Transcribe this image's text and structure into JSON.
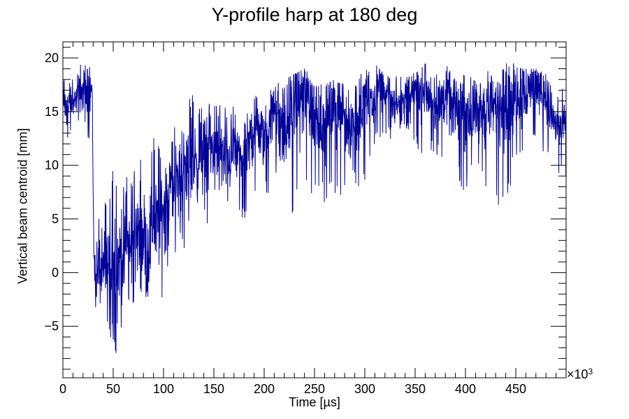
{
  "chart_data": {
    "type": "line",
    "title": "Y-profile harp at 180 deg",
    "xlabel": "Time [µs]",
    "ylabel": "Vertical beam centroid [mm]",
    "x_multiplier_base": "×10",
    "x_multiplier_exp": "3",
    "xlim": [
      0,
      500
    ],
    "ylim": [
      -9.8,
      21.5
    ],
    "x_ticks": [
      0,
      50,
      100,
      150,
      200,
      250,
      300,
      350,
      400,
      450
    ],
    "x_tick_labels": [
      "0",
      "50",
      "100",
      "150",
      "200",
      "250",
      "300",
      "350",
      "400",
      "450"
    ],
    "y_ticks": [
      -5,
      0,
      5,
      10,
      15,
      20
    ],
    "y_tick_labels": [
      "−5",
      "0",
      "5",
      "10",
      "15",
      "20"
    ],
    "grid": false,
    "legend": "none",
    "series_color": "#000099",
    "series": [
      {
        "x": [
          0,
          5,
          10,
          15,
          20,
          25,
          29,
          31,
          35,
          40,
          45,
          50,
          55,
          60,
          65,
          70,
          75,
          80,
          85,
          90,
          95,
          100,
          110,
          120,
          130,
          140,
          150,
          160,
          170,
          180,
          190,
          200,
          210,
          220,
          230,
          240,
          250,
          260,
          270,
          280,
          290,
          300,
          310,
          320,
          330,
          340,
          350,
          360,
          370,
          380,
          390,
          400,
          410,
          420,
          430,
          440,
          450,
          460,
          470,
          480,
          490,
          500
        ],
        "y": [
          16.5,
          15.2,
          16.0,
          16.5,
          17.0,
          16.8,
          17.2,
          0.5,
          0.2,
          -0.2,
          0.5,
          0.8,
          1.2,
          2.0,
          3.0,
          1.5,
          4.0,
          3.5,
          2.5,
          5.0,
          4.5,
          6.5,
          8.0,
          9.5,
          10.5,
          11.0,
          11.5,
          10.5,
          11.5,
          10.5,
          13.5,
          12.5,
          15.0,
          13.0,
          16.0,
          16.5,
          14.5,
          14.0,
          15.5,
          14.5,
          13.5,
          16.0,
          16.5,
          17.0,
          15.5,
          16.5,
          17.0,
          17.0,
          15.5,
          16.5,
          15.0,
          15.0,
          14.5,
          15.5,
          15.5,
          16.0,
          16.5,
          17.0,
          17.5,
          16.5,
          13.5,
          14.0
        ],
        "y_low": [
          13.5,
          12.0,
          14.0,
          13.5,
          14.5,
          11.5,
          14.0,
          -3.5,
          -4.0,
          -5.0,
          -6.0,
          -7.0,
          -8.2,
          -6.5,
          -3.5,
          -4.5,
          -2.5,
          -3.5,
          -3.0,
          -1.0,
          -2.0,
          -2.5,
          0.5,
          2.0,
          4.0,
          5.0,
          3.5,
          5.0,
          5.5,
          4.5,
          6.5,
          7.0,
          8.0,
          3.5,
          5.0,
          7.0,
          6.0,
          6.5,
          7.0,
          6.5,
          7.0,
          8.5,
          11.5,
          13.0,
          12.0,
          13.5,
          12.0,
          10.0,
          11.0,
          10.0,
          8.5,
          7.0,
          9.0,
          6.5,
          6.0,
          5.8,
          10.0,
          9.5,
          12.0,
          11.0,
          8.0,
          9.0
        ],
        "y_high": [
          18.5,
          17.5,
          18.5,
          19.5,
          19.8,
          19.0,
          19.5,
          3.8,
          6.0,
          7.5,
          8.0,
          10.5,
          9.0,
          10.0,
          8.5,
          9.5,
          11.0,
          10.5,
          12.0,
          13.0,
          12.5,
          13.0,
          13.5,
          14.0,
          18.0,
          16.0,
          15.5,
          16.0,
          16.0,
          14.5,
          17.0,
          16.5,
          17.5,
          18.0,
          18.5,
          19.0,
          18.0,
          17.5,
          18.0,
          17.5,
          18.0,
          19.0,
          19.5,
          19.0,
          18.5,
          19.0,
          18.5,
          19.5,
          18.5,
          19.5,
          18.0,
          18.5,
          18.0,
          19.0,
          18.0,
          19.5,
          19.5,
          19.0,
          19.0,
          18.5,
          16.5,
          17.5
        ]
      }
    ]
  }
}
